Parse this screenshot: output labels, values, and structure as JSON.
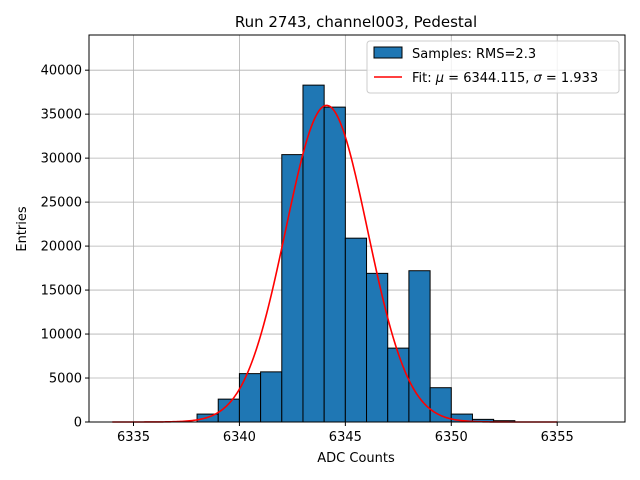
{
  "chart_data": {
    "type": "histogram",
    "title": "Run 2743, channel003, Pedestal",
    "xlabel": "ADC Counts",
    "ylabel": "Entries",
    "xlim": [
      6332.9,
      6358.2
    ],
    "ylim": [
      0,
      44000
    ],
    "xticks": [
      6335,
      6340,
      6345,
      6350,
      6355
    ],
    "yticks": [
      0,
      5000,
      10000,
      15000,
      20000,
      25000,
      30000,
      35000,
      40000
    ],
    "grid": true,
    "legend_position": "top-right",
    "bin_width": 1,
    "bins": [
      {
        "left": 6338,
        "count": 900
      },
      {
        "left": 6339,
        "count": 2600
      },
      {
        "left": 6340,
        "count": 5500
      },
      {
        "left": 6341,
        "count": 5700
      },
      {
        "left": 6342,
        "count": 30400
      },
      {
        "left": 6343,
        "count": 38300
      },
      {
        "left": 6344,
        "count": 35800
      },
      {
        "left": 6345,
        "count": 20900
      },
      {
        "left": 6346,
        "count": 16900
      },
      {
        "left": 6347,
        "count": 8400
      },
      {
        "left": 6348,
        "count": 17200
      },
      {
        "left": 6349,
        "count": 3900
      },
      {
        "left": 6350,
        "count": 900
      },
      {
        "left": 6351,
        "count": 300
      },
      {
        "left": 6352,
        "count": 150
      }
    ],
    "fit": {
      "mu": 6344.115,
      "sigma": 1.933,
      "amplitude": 36000,
      "x_range": [
        6334,
        6355
      ]
    },
    "legend": [
      {
        "label": "Samples: RMS=2.3",
        "kind": "patch"
      },
      {
        "label_prefix": "Fit: ",
        "mu_symbol": "μ",
        "mu_text": " = 6344.115, ",
        "sigma_symbol": "σ",
        "sigma_text": " = 1.933",
        "kind": "line"
      }
    ],
    "colors": {
      "bar_fill": "#1f77b4",
      "bar_edge": "#000000",
      "fit_line": "#ff0000",
      "grid": "#b0b0b0"
    }
  }
}
